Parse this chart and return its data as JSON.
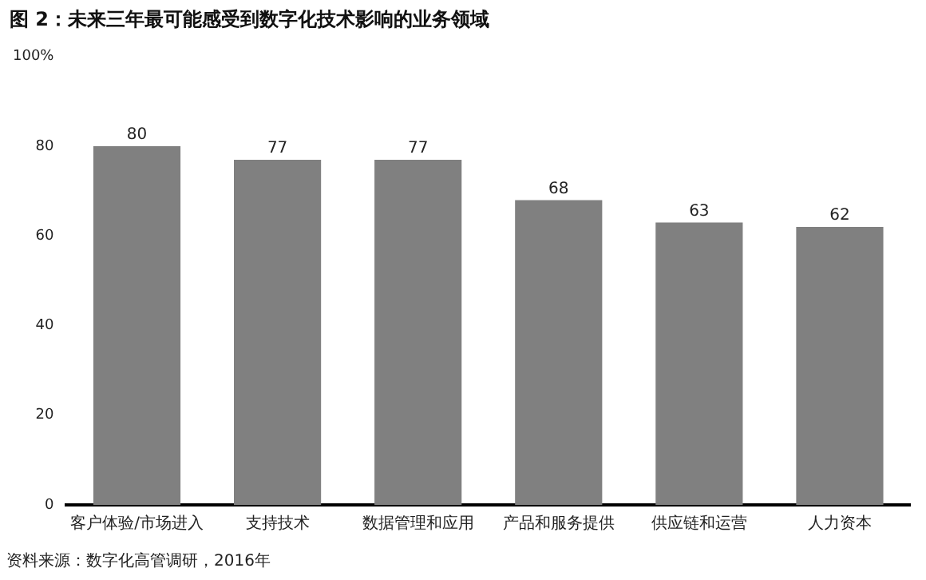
{
  "chart_data": {
    "type": "bar",
    "title": "图 2：未来三年最可能感受到数字化技术影响的业务领域",
    "categories": [
      "客户体验/市场进入",
      "支持技术",
      "数据管理和应用",
      "产品和服务提供",
      "供应链和运营",
      "人力资本"
    ],
    "values": [
      80,
      77,
      77,
      68,
      63,
      62
    ],
    "color": "#808080",
    "ylim": [
      0,
      100
    ],
    "yticks": [
      0,
      20,
      40,
      60,
      80,
      {
        "value": 100,
        "label": "100%"
      }
    ],
    "grid": false,
    "data_labels": true,
    "annotations": [
      "资料来源：数字化高管调研，2016年"
    ]
  }
}
